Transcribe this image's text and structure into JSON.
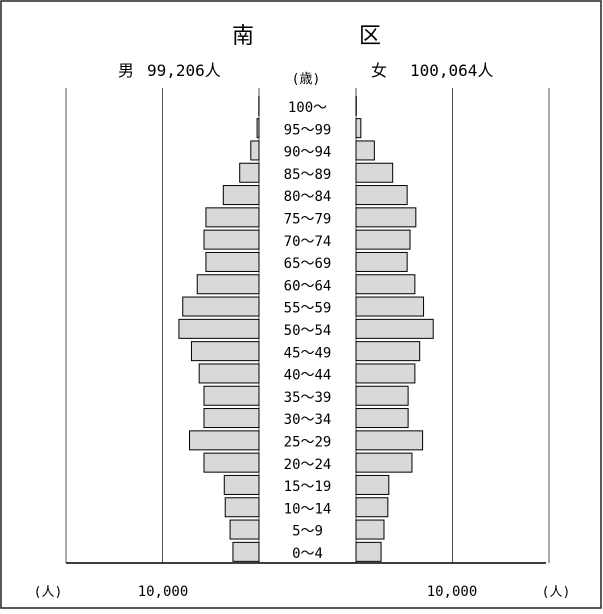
{
  "chart_data": {
    "type": "bar",
    "subtype": "population-pyramid",
    "title_left": "南",
    "title_right": "区",
    "male": {
      "label": "男",
      "total": "99,206人"
    },
    "female": {
      "label": "女",
      "total": "100,064人"
    },
    "age_unit": "(歳)",
    "categories": [
      "0～4",
      "5～9",
      "10～14",
      "15～19",
      "20～24",
      "25～29",
      "30～34",
      "35～39",
      "40～44",
      "45～49",
      "50～54",
      "55～59",
      "60～64",
      "65～69",
      "70～74",
      "75～79",
      "80～84",
      "85～89",
      "90～94",
      "95～99",
      "100～"
    ],
    "series": [
      {
        "name": "男",
        "values": [
          2700,
          3000,
          3500,
          3600,
          5700,
          7200,
          5700,
          5700,
          6200,
          7000,
          8300,
          7900,
          6400,
          5500,
          5700,
          5500,
          3700,
          2000,
          850,
          200,
          20
        ]
      },
      {
        "name": "女",
        "values": [
          2600,
          2900,
          3300,
          3400,
          5800,
          6900,
          5400,
          5400,
          6100,
          6600,
          8000,
          7000,
          6100,
          5300,
          5600,
          6200,
          5300,
          3800,
          1900,
          500,
          30
        ]
      }
    ],
    "xlabel": "(人)",
    "xticks": [
      "10,000",
      "10,000"
    ],
    "xmax": 20000,
    "grid": true
  }
}
